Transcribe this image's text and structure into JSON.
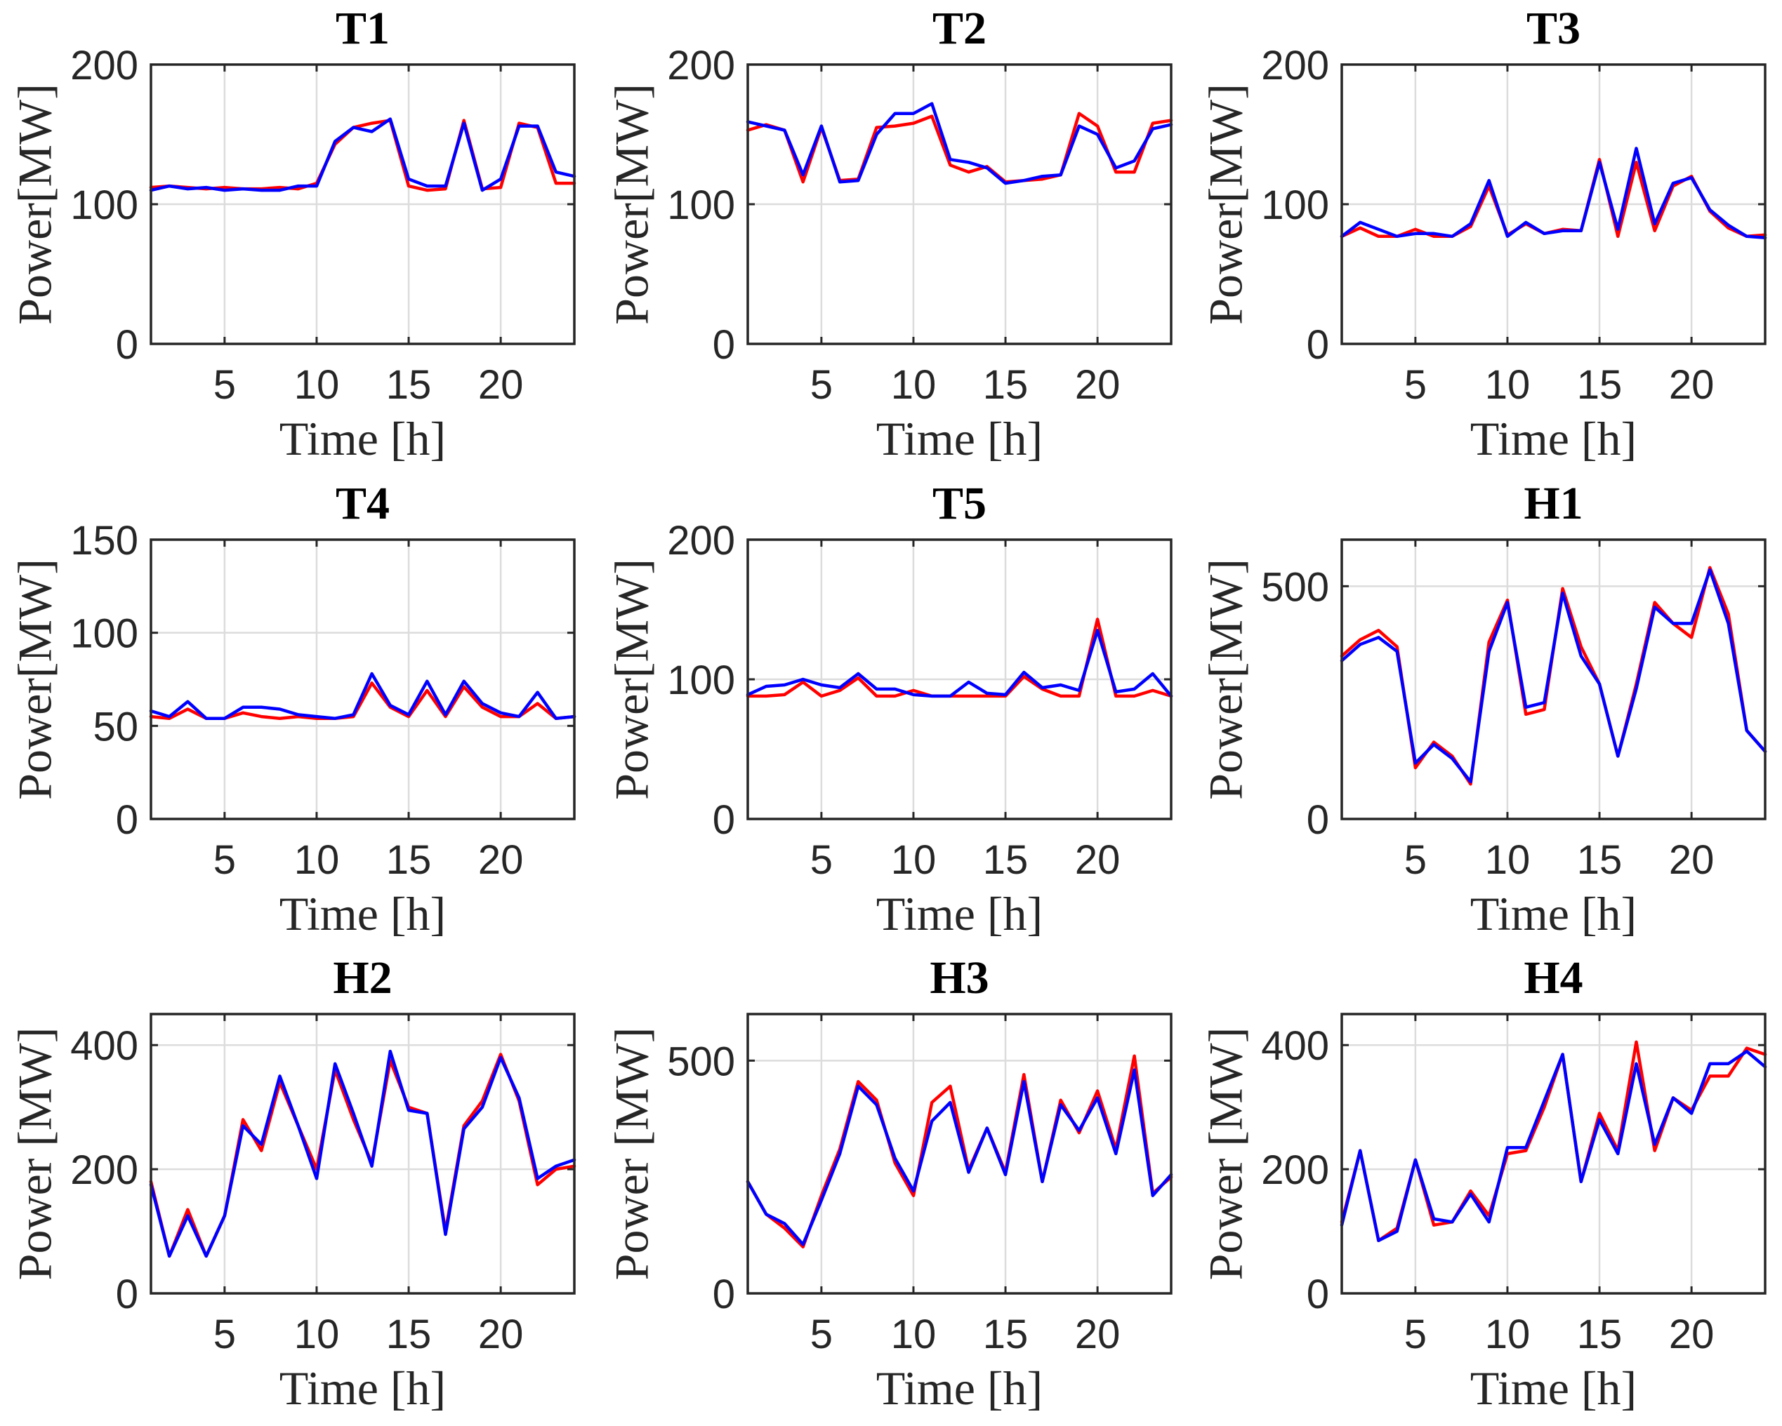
{
  "chart_data": [
    {
      "type": "line",
      "title": "T1",
      "xlabel": "Time [h]",
      "ylabel": "Power[MW]",
      "x": [
        1,
        2,
        3,
        4,
        5,
        6,
        7,
        8,
        9,
        10,
        11,
        12,
        13,
        14,
        15,
        16,
        17,
        18,
        19,
        20,
        21,
        22,
        23,
        24
      ],
      "xlim": [
        1,
        24
      ],
      "ylim": [
        0,
        200
      ],
      "xticks": [
        5,
        10,
        15,
        20
      ],
      "yticks": [
        0,
        100,
        200
      ],
      "grid": true,
      "series": [
        {
          "color": "#ff0000",
          "values": [
            112,
            113,
            112,
            111,
            112,
            111,
            111,
            112,
            111,
            115,
            143,
            155,
            158,
            160,
            113,
            110,
            111,
            160,
            111,
            112,
            158,
            155,
            115,
            115
          ]
        },
        {
          "color": "#0000ff",
          "values": [
            110,
            113,
            111,
            112,
            110,
            111,
            110,
            110,
            113,
            113,
            145,
            155,
            152,
            161,
            118,
            113,
            113,
            158,
            110,
            118,
            156,
            156,
            123,
            120
          ]
        }
      ]
    },
    {
      "type": "line",
      "title": "T2",
      "xlabel": "Time [h]",
      "ylabel": "Power[MW]",
      "x": [
        1,
        2,
        3,
        4,
        5,
        6,
        7,
        8,
        9,
        10,
        11,
        12,
        13,
        14,
        15,
        16,
        17,
        18,
        19,
        20,
        21,
        22,
        23,
        24
      ],
      "xlim": [
        1,
        24
      ],
      "ylim": [
        0,
        200
      ],
      "xticks": [
        5,
        10,
        15,
        20
      ],
      "yticks": [
        0,
        100,
        200
      ],
      "grid": true,
      "series": [
        {
          "color": "#ff0000",
          "values": [
            153,
            157,
            153,
            116,
            155,
            117,
            118,
            155,
            156,
            158,
            163,
            128,
            123,
            127,
            116,
            117,
            118,
            121,
            165,
            156,
            123,
            123,
            158,
            160
          ]
        },
        {
          "color": "#0000ff",
          "values": [
            159,
            156,
            153,
            121,
            156,
            116,
            117,
            150,
            165,
            165,
            172,
            132,
            130,
            126,
            115,
            117,
            120,
            121,
            156,
            150,
            126,
            131,
            154,
            157
          ]
        }
      ]
    },
    {
      "type": "line",
      "title": "T3",
      "xlabel": "Time [h]",
      "ylabel": "Power[MW]",
      "x": [
        1,
        2,
        3,
        4,
        5,
        6,
        7,
        8,
        9,
        10,
        11,
        12,
        13,
        14,
        15,
        16,
        17,
        18,
        19,
        20,
        21,
        22,
        23,
        24
      ],
      "xlim": [
        1,
        24
      ],
      "ylim": [
        0,
        200
      ],
      "xticks": [
        5,
        10,
        15,
        20
      ],
      "yticks": [
        0,
        100,
        200
      ],
      "grid": true,
      "series": [
        {
          "color": "#ff0000",
          "values": [
            77,
            83,
            77,
            77,
            82,
            77,
            77,
            84,
            113,
            78,
            86,
            79,
            82,
            81,
            132,
            77,
            130,
            81,
            113,
            120,
            95,
            83,
            77,
            78
          ]
        },
        {
          "color": "#0000ff",
          "values": [
            77,
            87,
            82,
            77,
            79,
            79,
            77,
            86,
            117,
            77,
            87,
            79,
            81,
            81,
            130,
            82,
            140,
            86,
            115,
            119,
            96,
            85,
            77,
            76
          ]
        }
      ]
    },
    {
      "type": "line",
      "title": "T4",
      "xlabel": "Time [h]",
      "ylabel": "Power[MW]",
      "x": [
        1,
        2,
        3,
        4,
        5,
        6,
        7,
        8,
        9,
        10,
        11,
        12,
        13,
        14,
        15,
        16,
        17,
        18,
        19,
        20,
        21,
        22,
        23,
        24
      ],
      "xlim": [
        1,
        24
      ],
      "ylim": [
        0,
        150
      ],
      "xticks": [
        5,
        10,
        15,
        20
      ],
      "yticks": [
        0,
        50,
        100,
        150
      ],
      "grid": true,
      "series": [
        {
          "color": "#ff0000",
          "values": [
            55,
            54,
            59,
            54,
            54,
            57,
            55,
            54,
            55,
            54,
            54,
            55,
            73,
            60,
            55,
            69,
            55,
            71,
            60,
            55,
            55,
            62,
            54,
            55
          ]
        },
        {
          "color": "#0000ff",
          "values": [
            58,
            55,
            63,
            54,
            54,
            60,
            60,
            59,
            56,
            55,
            54,
            56,
            78,
            61,
            56,
            74,
            56,
            74,
            62,
            57,
            55,
            68,
            54,
            55
          ]
        }
      ]
    },
    {
      "type": "line",
      "title": "T5",
      "xlabel": "Time [h]",
      "ylabel": "Power[MW]",
      "x": [
        1,
        2,
        3,
        4,
        5,
        6,
        7,
        8,
        9,
        10,
        11,
        12,
        13,
        14,
        15,
        16,
        17,
        18,
        19,
        20,
        21,
        22,
        23,
        24
      ],
      "xlim": [
        1,
        24
      ],
      "ylim": [
        0,
        200
      ],
      "xticks": [
        5,
        10,
        15,
        20
      ],
      "yticks": [
        0,
        100,
        200
      ],
      "grid": true,
      "series": [
        {
          "color": "#ff0000",
          "values": [
            88,
            88,
            89,
            98,
            88,
            92,
            101,
            88,
            88,
            92,
            88,
            88,
            88,
            88,
            88,
            102,
            93,
            88,
            88,
            143,
            88,
            88,
            92,
            88
          ]
        },
        {
          "color": "#0000ff",
          "values": [
            89,
            95,
            96,
            100,
            96,
            94,
            104,
            93,
            93,
            89,
            88,
            88,
            98,
            90,
            89,
            105,
            94,
            96,
            92,
            135,
            91,
            93,
            104,
            88
          ]
        }
      ]
    },
    {
      "type": "line",
      "title": "H1",
      "xlabel": "Time [h]",
      "ylabel": "Power[MW]",
      "x": [
        1,
        2,
        3,
        4,
        5,
        6,
        7,
        8,
        9,
        10,
        11,
        12,
        13,
        14,
        15,
        16,
        17,
        18,
        19,
        20,
        21,
        22,
        23,
        24
      ],
      "xlim": [
        1,
        24
      ],
      "ylim": [
        0,
        600
      ],
      "xticks": [
        5,
        10,
        15,
        20
      ],
      "yticks": [
        0,
        500
      ],
      "grid": true,
      "series": [
        {
          "color": "#ff0000",
          "values": [
            350,
            385,
            405,
            370,
            110,
            165,
            135,
            75,
            380,
            470,
            225,
            235,
            495,
            370,
            290,
            135,
            290,
            465,
            420,
            390,
            540,
            440,
            190,
            145
          ]
        },
        {
          "color": "#0000ff",
          "values": [
            340,
            375,
            390,
            360,
            120,
            160,
            130,
            80,
            360,
            465,
            240,
            250,
            485,
            350,
            290,
            135,
            280,
            455,
            420,
            420,
            535,
            420,
            190,
            145
          ]
        }
      ]
    },
    {
      "type": "line",
      "title": "H2",
      "xlabel": "Time [h]",
      "ylabel": "Power [MW]",
      "x": [
        1,
        2,
        3,
        4,
        5,
        6,
        7,
        8,
        9,
        10,
        11,
        12,
        13,
        14,
        15,
        16,
        17,
        18,
        19,
        20,
        21,
        22,
        23,
        24
      ],
      "xlim": [
        1,
        24
      ],
      "ylim": [
        0,
        450
      ],
      "xticks": [
        5,
        10,
        15,
        20
      ],
      "yticks": [
        0,
        200,
        400
      ],
      "grid": true,
      "series": [
        {
          "color": "#ff0000",
          "values": [
            180,
            60,
            135,
            60,
            125,
            280,
            230,
            340,
            270,
            200,
            360,
            280,
            210,
            375,
            300,
            290,
            100,
            270,
            310,
            385,
            310,
            175,
            200,
            205
          ]
        },
        {
          "color": "#0000ff",
          "values": [
            175,
            60,
            125,
            60,
            125,
            270,
            240,
            350,
            270,
            185,
            370,
            290,
            205,
            390,
            295,
            290,
            95,
            265,
            300,
            380,
            315,
            185,
            205,
            215
          ]
        }
      ]
    },
    {
      "type": "line",
      "title": "H3",
      "xlabel": "Time [h]",
      "ylabel": "Power [MW]",
      "x": [
        1,
        2,
        3,
        4,
        5,
        6,
        7,
        8,
        9,
        10,
        11,
        12,
        13,
        14,
        15,
        16,
        17,
        18,
        19,
        20,
        21,
        22,
        23,
        24
      ],
      "xlim": [
        1,
        24
      ],
      "ylim": [
        0,
        600
      ],
      "xticks": [
        5,
        10,
        15,
        20
      ],
      "yticks": [
        0,
        500
      ],
      "grid": true,
      "series": [
        {
          "color": "#ff0000",
          "values": [
            240,
            170,
            140,
            100,
            210,
            310,
            455,
            415,
            280,
            210,
            410,
            445,
            265,
            355,
            260,
            470,
            240,
            415,
            345,
            435,
            310,
            510,
            215,
            250
          ]
        },
        {
          "color": "#0000ff",
          "values": [
            240,
            170,
            150,
            105,
            200,
            300,
            445,
            405,
            290,
            220,
            370,
            410,
            260,
            355,
            255,
            455,
            240,
            405,
            350,
            420,
            300,
            480,
            210,
            255
          ]
        }
      ]
    },
    {
      "type": "line",
      "title": "H4",
      "xlabel": "Time [h]",
      "ylabel": "Power [MW]",
      "x": [
        1,
        2,
        3,
        4,
        5,
        6,
        7,
        8,
        9,
        10,
        11,
        12,
        13,
        14,
        15,
        16,
        17,
        18,
        19,
        20,
        21,
        22,
        23,
        24
      ],
      "xlim": [
        1,
        24
      ],
      "ylim": [
        0,
        450
      ],
      "xticks": [
        5,
        10,
        15,
        20
      ],
      "yticks": [
        0,
        200,
        400
      ],
      "grid": true,
      "series": [
        {
          "color": "#ff0000",
          "values": [
            115,
            230,
            85,
            105,
            215,
            110,
            115,
            165,
            125,
            225,
            230,
            300,
            385,
            180,
            290,
            230,
            405,
            230,
            315,
            295,
            350,
            350,
            395,
            385
          ]
        },
        {
          "color": "#0000ff",
          "values": [
            110,
            230,
            85,
            100,
            215,
            120,
            115,
            160,
            115,
            235,
            235,
            310,
            385,
            180,
            280,
            225,
            370,
            240,
            315,
            290,
            370,
            370,
            390,
            365
          ]
        }
      ]
    }
  ]
}
